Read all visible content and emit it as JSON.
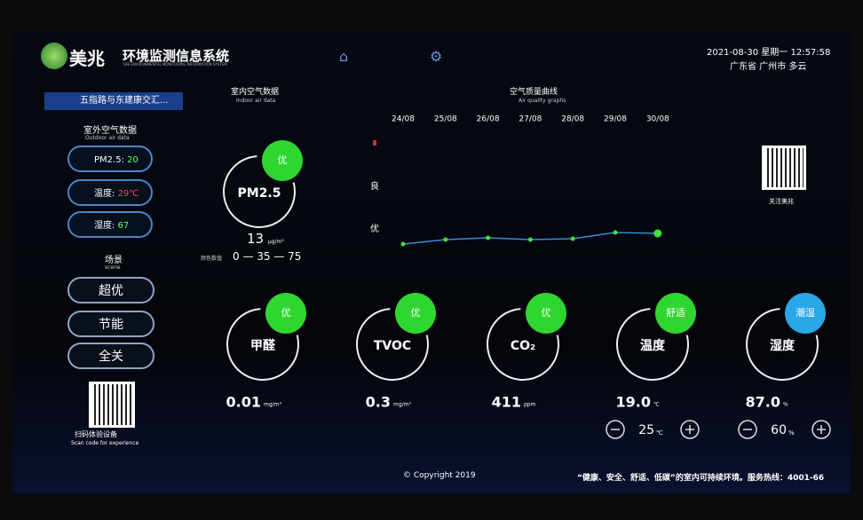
{
  "header": {
    "brand": "美兆",
    "system_name": "环境监测信息系统",
    "system_name_en": "THE ENVIRONMENTAL MONITORING INFORMATION SYSTEM",
    "datetime": "2021-08-30  星期一  12:57:58",
    "location": "广东省  广州市  多云"
  },
  "sidebar": {
    "site": "五指路与东建康交汇...",
    "outdoor_title": "室外空气数据",
    "outdoor_title_en": "Outdoor air data",
    "outdoor": [
      {
        "label": "PM2.5:",
        "value": "20"
      },
      {
        "label": "温度:",
        "value": "29℃"
      },
      {
        "label": "湿度:",
        "value": "67"
      }
    ],
    "scene_title": "场景",
    "scene_title_en": "scene",
    "scenes": [
      "超优",
      "节能",
      "全关"
    ],
    "qr_caption": "扫码体验设备",
    "qr_caption_en": "Scan code for experience"
  },
  "indoor": {
    "title": "室内空气数据",
    "title_en": "Indoor air data",
    "pm25": {
      "label": "PM2.5",
      "level": "优",
      "value": "13",
      "unit": "μg/m³",
      "scale_label": "颜色数值",
      "scale": "0 — 35 — 75"
    }
  },
  "trend": {
    "title": "空气质量曲线",
    "title_en": "Air quality graphs",
    "levels": [
      "良",
      "优"
    ],
    "dates": [
      "24/08",
      "25/08",
      "26/08",
      "27/08",
      "28/08",
      "29/08",
      "30/08"
    ],
    "values": [
      25,
      30,
      32,
      30,
      31,
      38,
      37
    ],
    "ylim": [
      0,
      150
    ]
  },
  "sensors": [
    {
      "label": "甲醛",
      "level": "优",
      "value": "0.01",
      "unit": "mg/m³"
    },
    {
      "label": "TVOC",
      "level": "优",
      "value": "0.3",
      "unit": "mg/m³"
    },
    {
      "label": "CO₂",
      "level": "优",
      "value": "411",
      "unit": "ppm"
    },
    {
      "label": "温度",
      "level": "舒适",
      "value": "19.0",
      "unit": "℃"
    },
    {
      "label": "湿度",
      "level": "潮湿",
      "value": "87.0",
      "unit": "%"
    }
  ],
  "setpoints": [
    {
      "value": "25",
      "unit": "℃"
    },
    {
      "value": "60",
      "unit": "%"
    }
  ],
  "follow_caption": "关注美兆",
  "footer": {
    "copyright": "© Copyright 2019",
    "notice": "“健康、安全、舒适、低碳”的室内可持续环境。服务热线：4001-66"
  }
}
